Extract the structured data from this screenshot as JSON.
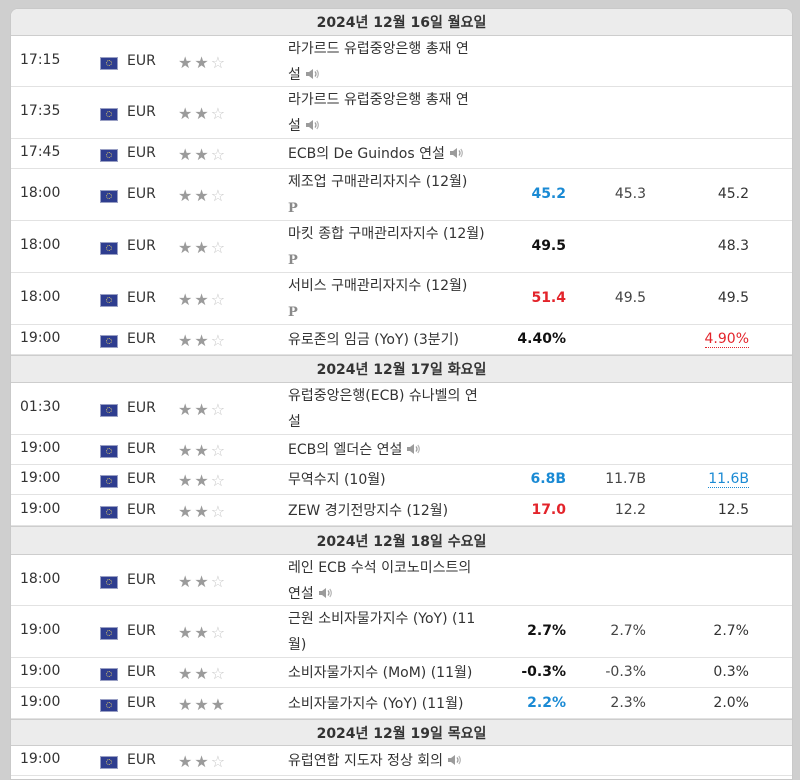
{
  "sections": [
    {
      "date": "2024년 12월 16일 월요일",
      "rows": [
        {
          "time": "17:15",
          "currency": "EUR",
          "stars": 2,
          "event_lines": [
            "라가르드 유럽중앙은행 총재 연",
            "설"
          ],
          "icon": "speaker",
          "actual": "",
          "actual_color": "",
          "forecast": "",
          "previous": "",
          "previous_style": ""
        },
        {
          "time": "17:35",
          "currency": "EUR",
          "stars": 2,
          "event_lines": [
            "라가르드 유럽중앙은행 총재 연",
            "설"
          ],
          "icon": "speaker",
          "actual": "",
          "actual_color": "",
          "forecast": "",
          "previous": "",
          "previous_style": ""
        },
        {
          "time": "17:45",
          "currency": "EUR",
          "stars": 2,
          "event_lines": [
            "ECB의 De Guindos 연설"
          ],
          "icon": "speaker",
          "actual": "",
          "actual_color": "",
          "forecast": "",
          "previous": "",
          "previous_style": ""
        },
        {
          "time": "18:00",
          "currency": "EUR",
          "stars": 2,
          "event_lines": [
            "제조업 구매관리자지수 (12월)",
            ""
          ],
          "icon": "preliminary",
          "actual": "45.2",
          "actual_color": "#1a8ad4",
          "forecast": "45.3",
          "previous": "45.2",
          "previous_style": ""
        },
        {
          "time": "18:00",
          "currency": "EUR",
          "stars": 2,
          "event_lines": [
            "마킷 종합 구매관리자지수 (12월)",
            ""
          ],
          "icon": "preliminary",
          "actual": "49.5",
          "actual_color": "#111111",
          "forecast": "",
          "previous": "48.3",
          "previous_style": ""
        },
        {
          "time": "18:00",
          "currency": "EUR",
          "stars": 2,
          "event_lines": [
            "서비스 구매관리자지수 (12월)",
            ""
          ],
          "icon": "preliminary",
          "actual": "51.4",
          "actual_color": "#e3242b",
          "forecast": "49.5",
          "previous": "49.5",
          "previous_style": ""
        },
        {
          "time": "19:00",
          "currency": "EUR",
          "stars": 2,
          "event_lines": [
            "유로존의 임금 (YoY) (3분기)"
          ],
          "icon": "",
          "actual": "4.40%",
          "actual_color": "#111111",
          "forecast": "",
          "previous": "4.90%",
          "previous_style": "revised-red"
        }
      ]
    },
    {
      "date": "2024년 12월 17일 화요일",
      "rows": [
        {
          "time": "01:30",
          "currency": "EUR",
          "stars": 2,
          "event_lines": [
            "유럽중앙은행(ECB) 슈나벨의 연",
            "설"
          ],
          "icon": "",
          "actual": "",
          "actual_color": "",
          "forecast": "",
          "previous": "",
          "previous_style": ""
        },
        {
          "time": "19:00",
          "currency": "EUR",
          "stars": 2,
          "event_lines": [
            "ECB의 엘더슨 연설"
          ],
          "icon": "speaker",
          "actual": "",
          "actual_color": "",
          "forecast": "",
          "previous": "",
          "previous_style": ""
        },
        {
          "time": "19:00",
          "currency": "EUR",
          "stars": 2,
          "event_lines": [
            "무역수지 (10월)"
          ],
          "icon": "",
          "actual": "6.8B",
          "actual_color": "#1a8ad4",
          "forecast": "11.7B",
          "previous": "11.6B",
          "previous_style": "revised-blue"
        },
        {
          "time": "19:00",
          "currency": "EUR",
          "stars": 2,
          "event_lines": [
            "ZEW 경기전망지수 (12월)"
          ],
          "icon": "",
          "actual": "17.0",
          "actual_color": "#e3242b",
          "forecast": "12.2",
          "previous": "12.5",
          "previous_style": ""
        }
      ]
    },
    {
      "date": "2024년 12월 18일 수요일",
      "rows": [
        {
          "time": "18:00",
          "currency": "EUR",
          "stars": 2,
          "event_lines": [
            "레인 ECB 수석 이코노미스트의",
            "연설"
          ],
          "icon": "speaker",
          "actual": "",
          "actual_color": "",
          "forecast": "",
          "previous": "",
          "previous_style": ""
        },
        {
          "time": "19:00",
          "currency": "EUR",
          "stars": 2,
          "event_lines": [
            "근원 소비자물가지수 (YoY) (11",
            "월)"
          ],
          "icon": "",
          "actual": "2.7%",
          "actual_color": "#111111",
          "forecast": "2.7%",
          "previous": "2.7%",
          "previous_style": ""
        },
        {
          "time": "19:00",
          "currency": "EUR",
          "stars": 2,
          "event_lines": [
            "소비자물가지수 (MoM) (11월)"
          ],
          "icon": "",
          "actual": "-0.3%",
          "actual_color": "#111111",
          "forecast": "-0.3%",
          "previous": "0.3%",
          "previous_style": ""
        },
        {
          "time": "19:00",
          "currency": "EUR",
          "stars": 3,
          "event_lines": [
            "소비자물가지수 (YoY) (11월)"
          ],
          "icon": "",
          "actual": "2.2%",
          "actual_color": "#1a8ad4",
          "forecast": "2.3%",
          "previous": "2.0%",
          "previous_style": ""
        }
      ]
    },
    {
      "date": "2024년 12월 19일 목요일",
      "rows": [
        {
          "time": "19:00",
          "currency": "EUR",
          "stars": 2,
          "event_lines": [
            "유럽연합 지도자 정상 회의"
          ],
          "icon": "speaker",
          "actual": "",
          "actual_color": "",
          "forecast": "",
          "previous": "",
          "previous_style": ""
        }
      ]
    }
  ]
}
